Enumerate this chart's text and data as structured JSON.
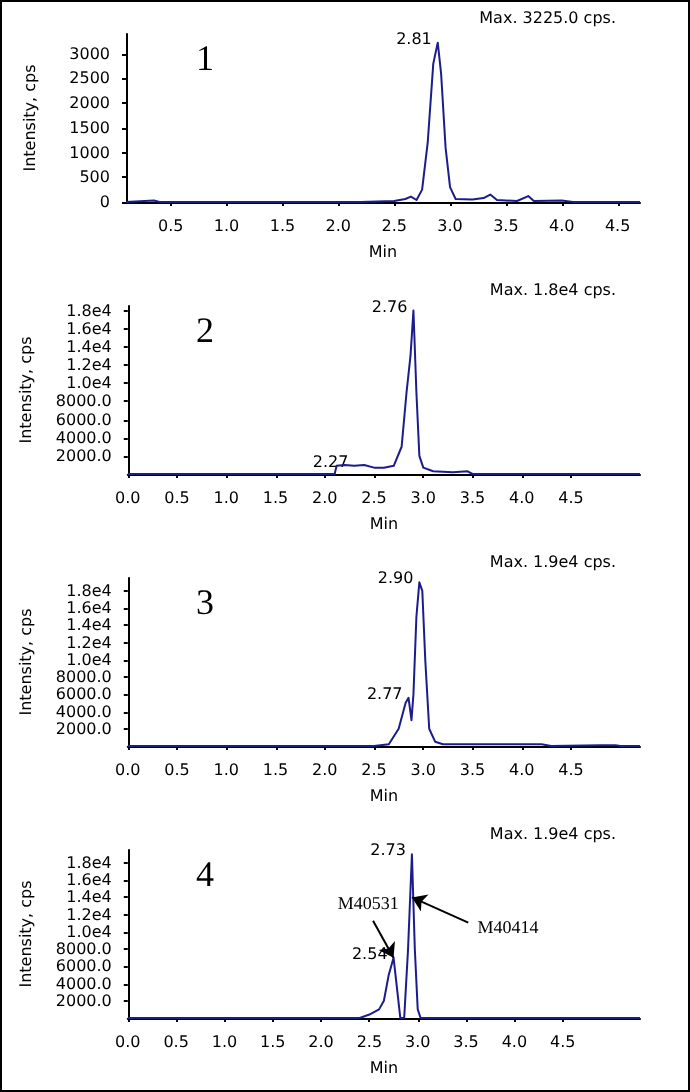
{
  "chart_data": [
    {
      "type": "line",
      "title": "1",
      "xlabel": "Min",
      "ylabel": "Intensity, cps",
      "xlim": [
        0.1,
        4.7
      ],
      "ylim": [
        0,
        3400
      ],
      "xticks": [
        0.5,
        {
          "value": 1,
          "label": "1.0"
        },
        1.5,
        {
          "value": 2,
          "label": "2.0"
        },
        2.5,
        {
          "value": 3,
          "label": "3.0"
        },
        3.5,
        {
          "value": 4,
          "label": "4.0"
        },
        4.5
      ],
      "yticks": [
        0,
        500,
        1000,
        1500,
        2000,
        2500,
        3000
      ],
      "grid": false,
      "marker": "none",
      "line_style": "solid",
      "series": [
        {
          "color": "#1c1c8c",
          "x": [
            0.1,
            0.35,
            0.4,
            1.0,
            2.2,
            2.5,
            2.6,
            2.65,
            2.7,
            2.75,
            2.8,
            2.85,
            2.89,
            2.92,
            2.96,
            3.0,
            3.05,
            3.2,
            3.3,
            3.36,
            3.42,
            3.6,
            3.7,
            3.75,
            4.0,
            4.1,
            4.7
          ],
          "values": [
            0,
            30,
            0,
            0,
            0,
            20,
            60,
            110,
            40,
            250,
            1200,
            2800,
            3225,
            2600,
            1100,
            300,
            60,
            50,
            80,
            150,
            40,
            20,
            120,
            20,
            30,
            0,
            0
          ]
        }
      ],
      "annotations": [
        {
          "text": "2.81",
          "x": 2.89,
          "y": 3225
        },
        "Max. 3225.0 cps."
      ]
    },
    {
      "type": "line",
      "title": "2",
      "xlabel": "Min",
      "ylabel": "Intensity, cps",
      "xlim": [
        0,
        5.2
      ],
      "ylim": [
        0,
        18500
      ],
      "xticks": [
        {
          "value": 0,
          "label": "0.0"
        },
        0.5,
        {
          "value": 1,
          "label": "1.0"
        },
        1.5,
        {
          "value": 2,
          "label": "2.0"
        },
        2.5,
        {
          "value": 3,
          "label": "3.0"
        },
        3.5,
        {
          "value": 4,
          "label": "4.0"
        },
        4.5
      ],
      "yticks": [
        {
          "value": 2000,
          "label": "2000.0"
        },
        {
          "value": 4000,
          "label": "4000.0"
        },
        {
          "value": 6000,
          "label": "6000.0"
        },
        {
          "value": 8000,
          "label": "8000.0"
        },
        {
          "value": 10000,
          "label": "1.0e4"
        },
        {
          "value": 12000,
          "label": "1.2e4"
        },
        {
          "value": 14000,
          "label": "1.4e4"
        },
        {
          "value": 16000,
          "label": "1.6e4"
        },
        {
          "value": 18000,
          "label": "1.8e4"
        }
      ],
      "grid": false,
      "marker": "none",
      "line_style": "solid",
      "series": [
        {
          "color": "#1c1c8c",
          "x": [
            0,
            2.1,
            2.12,
            2.2,
            2.3,
            2.4,
            2.5,
            2.6,
            2.7,
            2.78,
            2.83,
            2.87,
            2.9,
            2.93,
            2.96,
            3.0,
            3.1,
            3.3,
            3.45,
            3.5,
            5.2
          ],
          "values": [
            0,
            0,
            900,
            1000,
            900,
            1000,
            700,
            700,
            900,
            3000,
            9000,
            13000,
            18000,
            9000,
            2000,
            700,
            300,
            200,
            300,
            0,
            0
          ]
        }
      ],
      "annotations": [
        {
          "text": "2.76",
          "x": 2.9,
          "y": 18000
        },
        {
          "text": "2.27",
          "x": 2.3,
          "y": 900
        },
        "Max. 1.8e4 cps."
      ]
    },
    {
      "type": "line",
      "title": "3",
      "xlabel": "Min",
      "ylabel": "Intensity, cps",
      "xlim": [
        0,
        5.2
      ],
      "ylim": [
        0,
        19500
      ],
      "xticks": [
        {
          "value": 0,
          "label": "0.0"
        },
        0.5,
        {
          "value": 1,
          "label": "1.0"
        },
        1.5,
        {
          "value": 2,
          "label": "2.0"
        },
        2.5,
        {
          "value": 3,
          "label": "3.0"
        },
        3.5,
        {
          "value": 4,
          "label": "4.0"
        },
        4.5
      ],
      "yticks": [
        {
          "value": 2000,
          "label": "2000.0"
        },
        {
          "value": 4000,
          "label": "4000.0"
        },
        {
          "value": 6000,
          "label": "6000.0"
        },
        {
          "value": 8000,
          "label": "8000.0"
        },
        {
          "value": 10000,
          "label": "1.0e4"
        },
        {
          "value": 12000,
          "label": "1.2e4"
        },
        {
          "value": 14000,
          "label": "1.4e4"
        },
        {
          "value": 16000,
          "label": "1.6e4"
        },
        {
          "value": 18000,
          "label": "1.8e4"
        }
      ],
      "grid": false,
      "marker": "none",
      "line_style": "solid",
      "series": [
        {
          "color": "#1c1c8c",
          "x": [
            0,
            2.5,
            2.65,
            2.75,
            2.82,
            2.85,
            2.88,
            2.9,
            2.93,
            2.96,
            2.99,
            3.02,
            3.06,
            3.12,
            3.2,
            3.5,
            4.2,
            4.3,
            4.8,
            4.95,
            5.0,
            5.2
          ],
          "values": [
            0,
            0,
            200,
            2000,
            5000,
            5600,
            3000,
            6000,
            15000,
            19000,
            18000,
            10000,
            2000,
            500,
            200,
            200,
            200,
            0,
            100,
            100,
            0,
            0
          ]
        }
      ],
      "annotations": [
        {
          "text": "2.90",
          "x": 2.96,
          "y": 19000
        },
        {
          "text": "2.77",
          "x": 2.85,
          "y": 5600
        },
        "Max. 1.9e4 cps."
      ]
    },
    {
      "type": "line",
      "title": "4",
      "xlabel": "Min",
      "ylabel": "Intensity, cps",
      "xlim": [
        0,
        5.3
      ],
      "ylim": [
        0,
        19500
      ],
      "xticks": [
        {
          "value": 0,
          "label": "0.0"
        },
        0.5,
        {
          "value": 1,
          "label": "1.0"
        },
        1.5,
        {
          "value": 2,
          "label": "2.0"
        },
        2.5,
        {
          "value": 3,
          "label": "3.0"
        },
        3.5,
        {
          "value": 4,
          "label": "4.0"
        },
        4.5
      ],
      "yticks": [
        {
          "value": 2000,
          "label": "2000.0"
        },
        {
          "value": 4000,
          "label": "4000.0"
        },
        {
          "value": 6000,
          "label": "6000.0"
        },
        {
          "value": 8000,
          "label": "8000.0"
        },
        {
          "value": 10000,
          "label": "1.0e4"
        },
        {
          "value": 12000,
          "label": "1.2e4"
        },
        {
          "value": 14000,
          "label": "1.4e4"
        },
        {
          "value": 16000,
          "label": "1.6e4"
        },
        {
          "value": 18000,
          "label": "1.8e4"
        }
      ],
      "grid": false,
      "marker": "none",
      "line_style": "solid",
      "series": [
        {
          "color": "#1c1c8c",
          "x": [
            0,
            2.4,
            2.5,
            2.6,
            2.65,
            2.7,
            2.75,
            2.79,
            2.82,
            2.86,
            2.9,
            2.94,
            2.97,
            3.0,
            3.03,
            5.3
          ],
          "values": [
            0,
            0,
            400,
            1000,
            2000,
            5000,
            7000,
            3000,
            0,
            0,
            8000,
            19000,
            8000,
            1000,
            0,
            0
          ]
        }
      ],
      "annotations": [
        {
          "text": "2.54",
          "x": 2.75,
          "y": 7000
        },
        {
          "text": "M40531",
          "x": 2.75,
          "y": 7000
        },
        {
          "text": "2.73",
          "x": 2.94,
          "y": 19000
        },
        {
          "text": "M40414",
          "x": 2.94,
          "y": 14000
        },
        "Max. 1.9e4 cps."
      ]
    }
  ]
}
